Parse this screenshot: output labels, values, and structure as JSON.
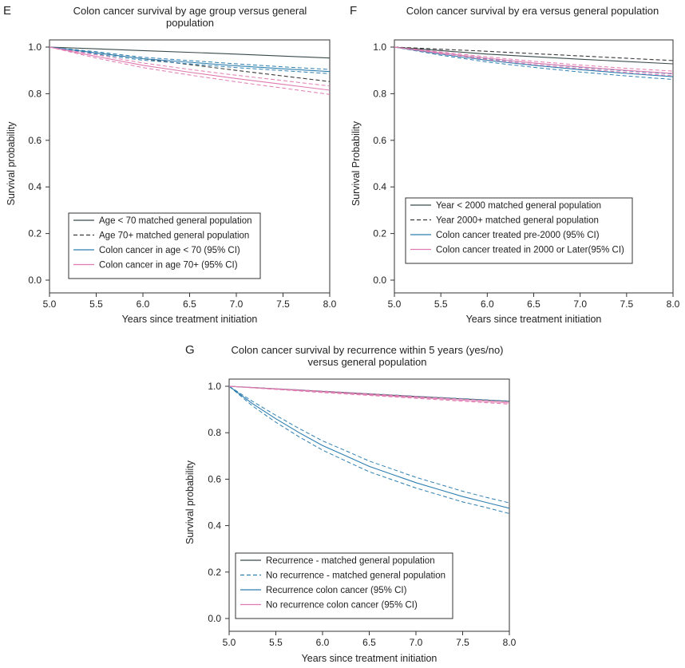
{
  "chart_data": [
    {
      "panel": "E",
      "type": "line",
      "title_lines": [
        "Colon cancer survival by age group versus general",
        "population"
      ],
      "xlabel": "Years since treatment initiation",
      "ylabel": "Survival probability",
      "xlim": [
        5.0,
        8.0
      ],
      "ylim": [
        0.0,
        1.0
      ],
      "xticks": [
        "5.0",
        "5.5",
        "6.0",
        "6.5",
        "7.0",
        "7.5",
        "8.0"
      ],
      "yticks": [
        "0.0",
        "0.2",
        "0.4",
        "0.6",
        "0.8",
        "1.0"
      ],
      "legend_position": "lower-left",
      "series": [
        {
          "name": "Age < 70 matched general population",
          "color": "#3a4a4a",
          "dash": "solid",
          "x": [
            5.0,
            6.0,
            7.0,
            8.0
          ],
          "y": [
            1.0,
            0.985,
            0.97,
            0.953
          ]
        },
        {
          "name": "Age 70+ matched general population",
          "color": "#3a3a3a",
          "dash": "dashed",
          "x": [
            5.0,
            6.0,
            7.0,
            8.0
          ],
          "y": [
            1.0,
            0.95,
            0.9,
            0.852
          ]
        },
        {
          "name": "Colon cancer in age < 70 (95% CI)",
          "color": "#2e7fb0",
          "dash": "solid",
          "x": [
            5.0,
            5.5,
            6.0,
            6.5,
            7.0,
            7.5,
            8.0
          ],
          "y": [
            1.0,
            0.975,
            0.95,
            0.935,
            0.92,
            0.907,
            0.895
          ],
          "ci_lower": [
            1.0,
            0.97,
            0.944,
            0.928,
            0.912,
            0.899,
            0.886
          ],
          "ci_upper": [
            1.0,
            0.98,
            0.956,
            0.942,
            0.928,
            0.915,
            0.904
          ]
        },
        {
          "name": "Colon cancer in age 70+ (95% CI)",
          "color": "#e07ab0",
          "dash": "solid",
          "x": [
            5.0,
            5.5,
            6.0,
            6.5,
            7.0,
            7.5,
            8.0
          ],
          "y": [
            1.0,
            0.96,
            0.922,
            0.892,
            0.865,
            0.84,
            0.815
          ],
          "ci_lower": [
            1.0,
            0.953,
            0.912,
            0.88,
            0.851,
            0.824,
            0.797
          ],
          "ci_upper": [
            1.0,
            0.967,
            0.932,
            0.904,
            0.879,
            0.856,
            0.833
          ]
        }
      ]
    },
    {
      "panel": "F",
      "type": "line",
      "title_lines": [
        "Colon cancer survival by era versus general population"
      ],
      "xlabel": "Years since treatment initiation",
      "ylabel": "Survival Probability",
      "xlim": [
        5.0,
        8.0
      ],
      "ylim": [
        0.0,
        1.0
      ],
      "xticks": [
        "5.0",
        "5.5",
        "6.0",
        "6.5",
        "7.0",
        "7.5",
        "8.0"
      ],
      "yticks": [
        "0.0",
        "0.2",
        "0.4",
        "0.6",
        "0.8",
        "1.0"
      ],
      "legend_position": "lower-left",
      "series": [
        {
          "name": "Year < 2000 matched general population",
          "color": "#3a4a4a",
          "dash": "solid",
          "x": [
            5.0,
            6.0,
            7.0,
            8.0
          ],
          "y": [
            1.0,
            0.97,
            0.948,
            0.928
          ]
        },
        {
          "name": "Year 2000+ matched general population",
          "color": "#3a3a3a",
          "dash": "dashed",
          "x": [
            5.0,
            6.0,
            7.0,
            8.0
          ],
          "y": [
            1.0,
            0.982,
            0.962,
            0.942
          ]
        },
        {
          "name": "Colon cancer treated pre-2000 (95% CI)",
          "color": "#2e7fb0",
          "dash": "solid",
          "x": [
            5.0,
            5.5,
            6.0,
            6.5,
            7.0,
            7.5,
            8.0
          ],
          "y": [
            1.0,
            0.97,
            0.943,
            0.922,
            0.903,
            0.887,
            0.873
          ],
          "ci_lower": [
            1.0,
            0.965,
            0.936,
            0.913,
            0.893,
            0.876,
            0.861
          ],
          "ci_upper": [
            1.0,
            0.975,
            0.95,
            0.931,
            0.913,
            0.898,
            0.885
          ]
        },
        {
          "name": "Colon cancer treated in 2000 or Later(95% CI)",
          "color": "#e07ab0",
          "dash": "solid",
          "x": [
            5.0,
            5.5,
            6.0,
            6.5,
            7.0,
            7.5,
            8.0
          ],
          "y": [
            1.0,
            0.975,
            0.952,
            0.932,
            0.915,
            0.9,
            0.887
          ],
          "ci_lower": [
            1.0,
            0.971,
            0.946,
            0.925,
            0.907,
            0.891,
            0.877
          ],
          "ci_upper": [
            1.0,
            0.979,
            0.958,
            0.939,
            0.923,
            0.909,
            0.897
          ]
        }
      ]
    },
    {
      "panel": "G",
      "type": "line",
      "title_lines": [
        "Colon cancer survival by recurrence within 5 years (yes/no)",
        "versus general population"
      ],
      "xlabel": "Years since treatment initiation",
      "ylabel": "Survival probability",
      "xlim": [
        5.0,
        8.0
      ],
      "ylim": [
        0.0,
        1.0
      ],
      "xticks": [
        "5.0",
        "5.5",
        "6.0",
        "6.5",
        "7.0",
        "7.5",
        "8.0"
      ],
      "yticks": [
        "0.0",
        "0.2",
        "0.4",
        "0.6",
        "0.8",
        "1.0"
      ],
      "legend_position": "lower-left",
      "series": [
        {
          "name": "Recurrence - matched general population",
          "color": "#3a4a4a",
          "dash": "solid",
          "x": [
            5.0,
            6.0,
            7.0,
            8.0
          ],
          "y": [
            1.0,
            0.978,
            0.956,
            0.935
          ]
        },
        {
          "name": "No recurrence - matched general population",
          "color": "#2e7fb0",
          "dash": "dashed",
          "x": [
            5.0,
            6.0,
            7.0,
            8.0
          ],
          "y": [
            1.0,
            0.979,
            0.957,
            0.936
          ]
        },
        {
          "name": "Recurrence colon cancer (95% CI)",
          "color": "#2e7fb0",
          "dash": "solid",
          "x": [
            5.0,
            5.25,
            5.5,
            5.75,
            6.0,
            6.25,
            6.5,
            6.75,
            7.0,
            7.25,
            7.5,
            7.75,
            8.0
          ],
          "y": [
            1.0,
            0.925,
            0.86,
            0.8,
            0.745,
            0.7,
            0.655,
            0.62,
            0.585,
            0.555,
            0.525,
            0.5,
            0.475
          ],
          "ci_lower": [
            1.0,
            0.915,
            0.845,
            0.782,
            0.725,
            0.678,
            0.632,
            0.597,
            0.562,
            0.532,
            0.502,
            0.478,
            0.452
          ],
          "ci_upper": [
            1.0,
            0.935,
            0.875,
            0.818,
            0.765,
            0.722,
            0.678,
            0.643,
            0.608,
            0.578,
            0.548,
            0.522,
            0.498
          ]
        },
        {
          "name": "No recurrence colon cancer (95% CI)",
          "color": "#e07ab0",
          "dash": "solid",
          "x": [
            5.0,
            6.0,
            7.0,
            8.0
          ],
          "y": [
            1.0,
            0.976,
            0.952,
            0.928
          ],
          "ci_lower": [
            1.0,
            0.973,
            0.948,
            0.923
          ],
          "ci_upper": [
            1.0,
            0.979,
            0.956,
            0.933
          ]
        }
      ]
    }
  ]
}
